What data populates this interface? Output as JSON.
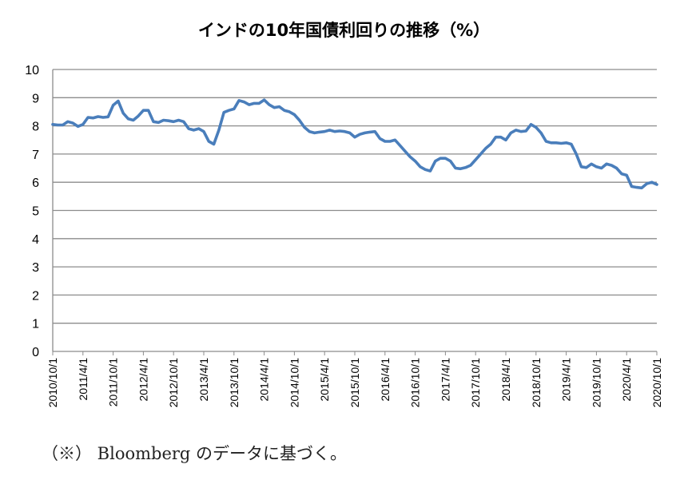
{
  "chart_data": {
    "type": "line",
    "title": "インドの10年国債利回りの推移（%）",
    "xlabel": "",
    "ylabel": "",
    "ylim": [
      0,
      10
    ],
    "yticks": [
      0,
      1,
      2,
      3,
      4,
      5,
      6,
      7,
      8,
      9,
      10
    ],
    "grid": true,
    "legend": "none",
    "line_color": "#4A7EBB",
    "x_tick_labels": [
      "2010/10/1",
      "2011/4/1",
      "2011/10/1",
      "2012/4/1",
      "2012/10/1",
      "2013/4/1",
      "2013/10/1",
      "2014/4/1",
      "2014/10/1",
      "2015/4/1",
      "2015/10/1",
      "2016/4/1",
      "2016/10/1",
      "2017/4/1",
      "2017/10/1",
      "2018/4/1",
      "2018/10/1",
      "2019/4/1",
      "2019/10/1",
      "2020/4/1",
      "2020/10/1"
    ],
    "series": [
      {
        "values": [
          8.05,
          8.03,
          8.03,
          8.15,
          8.1,
          7.98,
          8.05,
          8.3,
          8.28,
          8.33,
          8.3,
          8.32,
          8.73,
          8.88,
          8.45,
          8.25,
          8.2,
          8.35,
          8.55,
          8.55,
          8.15,
          8.12,
          8.2,
          8.18,
          8.15,
          8.2,
          8.15,
          7.9,
          7.85,
          7.9,
          7.8,
          7.45,
          7.35,
          7.85,
          8.48,
          8.55,
          8.6,
          8.9,
          8.85,
          8.75,
          8.8,
          8.8,
          8.92,
          8.75,
          8.65,
          8.68,
          8.55,
          8.5,
          8.4,
          8.2,
          7.95,
          7.8,
          7.75,
          7.78,
          7.8,
          7.85,
          7.8,
          7.82,
          7.8,
          7.75,
          7.6,
          7.7,
          7.75,
          7.78,
          7.8,
          7.55,
          7.45,
          7.45,
          7.5,
          7.3,
          7.1,
          6.9,
          6.75,
          6.55,
          6.45,
          6.4,
          6.75,
          6.85,
          6.85,
          6.75,
          6.5,
          6.48,
          6.52,
          6.6,
          6.8,
          7.0,
          7.2,
          7.35,
          7.6,
          7.6,
          7.5,
          7.75,
          7.85,
          7.8,
          7.82,
          8.05,
          7.95,
          7.75,
          7.45,
          7.4,
          7.4,
          7.38,
          7.4,
          7.35,
          7.0,
          6.55,
          6.52,
          6.65,
          6.55,
          6.5,
          6.65,
          6.6,
          6.5,
          6.3,
          6.25,
          5.85,
          5.82,
          5.8,
          5.95,
          6.0,
          5.92
        ]
      }
    ]
  },
  "footnote": "（※） Bloomberg のデータに基づく。"
}
